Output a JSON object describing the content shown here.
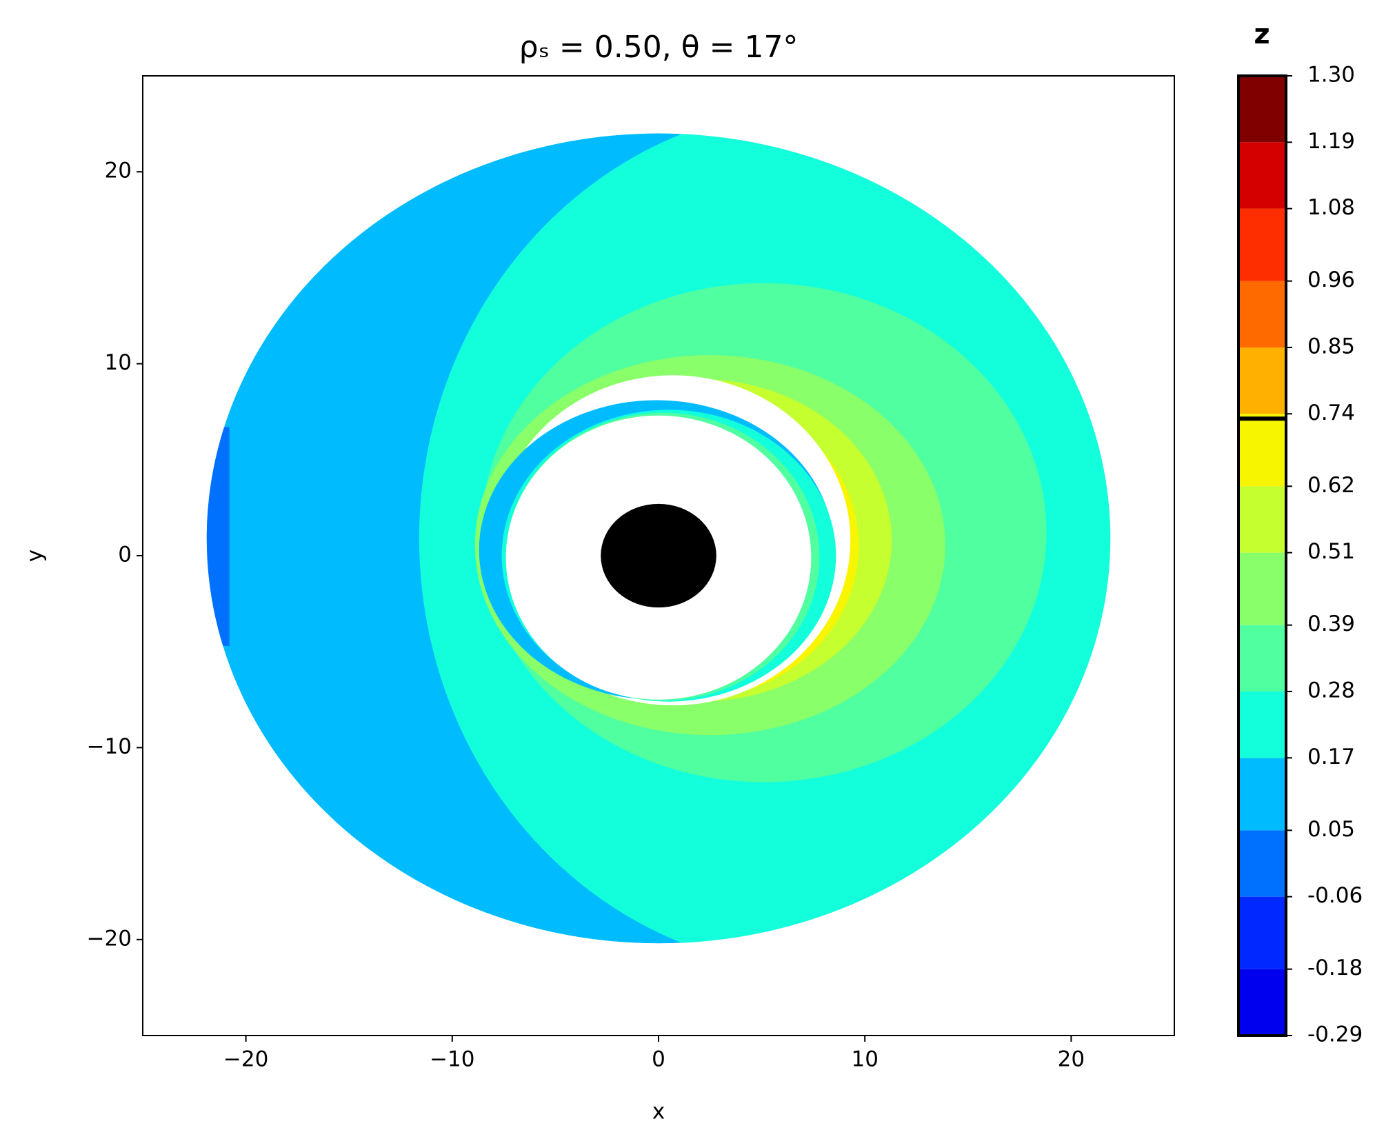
{
  "chart_data": {
    "type": "scatter",
    "title": "ρₛ = 0.50,  θ = 17°",
    "xlabel": "x",
    "ylabel": "y",
    "xlim": [
      -25,
      25
    ],
    "xticks": [
      {
        "value": -20,
        "label": "−20"
      },
      {
        "value": -10,
        "label": "−10"
      },
      0,
      10,
      20
    ],
    "ylim": [
      -25,
      25
    ],
    "yticks": [
      {
        "value": -20,
        "label": "−20"
      },
      {
        "value": -10,
        "label": "−10"
      },
      0,
      10,
      20
    ],
    "grid": false,
    "colorbar": {
      "label": "z",
      "ticks": [
        -0.29,
        -0.18,
        -0.06,
        0.05,
        0.17,
        0.28,
        0.39,
        0.51,
        0.62,
        0.74,
        0.85,
        0.96,
        1.08,
        1.19,
        {
          "value": 1.3,
          "label": "1.30"
        }
      ],
      "colors": [
        "#0000ee",
        "#0028ff",
        "#0070ff",
        "#00bcff",
        "#13ffdc",
        "#50ffa0",
        "#89ff69",
        "#c6ff30",
        "#f8f500",
        "#ffb000",
        "#ff6a00",
        "#ff2e00",
        "#d40000",
        "#800000"
      ]
    }
  }
}
